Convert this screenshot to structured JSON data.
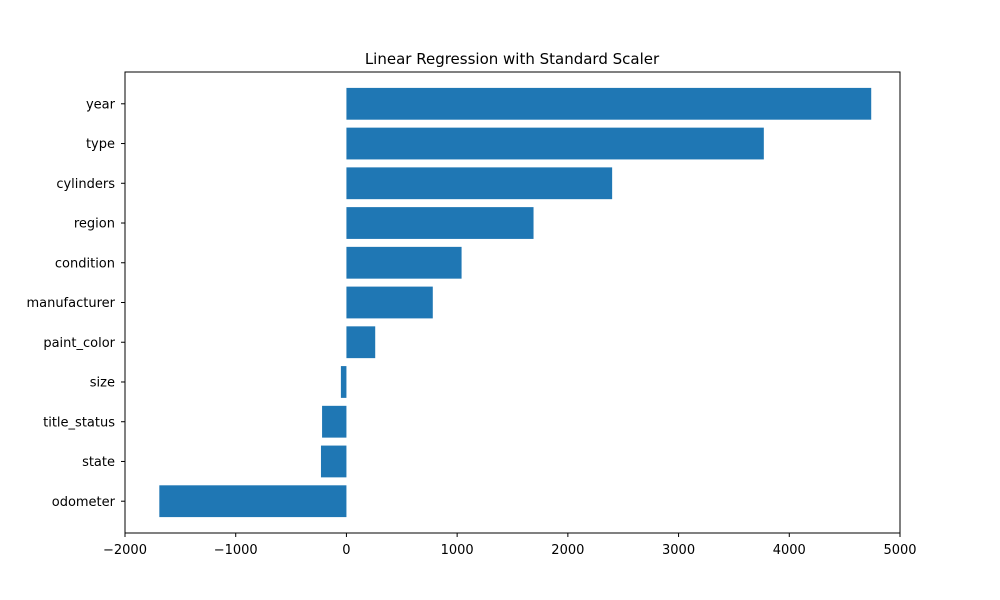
{
  "chart_data": {
    "type": "bar",
    "orientation": "horizontal",
    "title": "Linear Regression with Standard Scaler",
    "xlabel": "",
    "ylabel": "",
    "categories": [
      "year",
      "type",
      "cylinders",
      "region",
      "condition",
      "manufacturer",
      "paint_color",
      "size",
      "title_status",
      "state",
      "odometer"
    ],
    "values": [
      4740,
      3770,
      2400,
      1690,
      1040,
      780,
      260,
      -50,
      -220,
      -230,
      -1690
    ],
    "xlim": [
      -2000,
      5000
    ],
    "xticks": [
      -2000,
      -1000,
      0,
      1000,
      2000,
      3000,
      4000,
      5000
    ],
    "xtick_labels": [
      "−2000",
      "−1000",
      "0",
      "1000",
      "2000",
      "3000",
      "4000",
      "5000"
    ],
    "grid": false,
    "bar_color": "#1f77b4"
  }
}
